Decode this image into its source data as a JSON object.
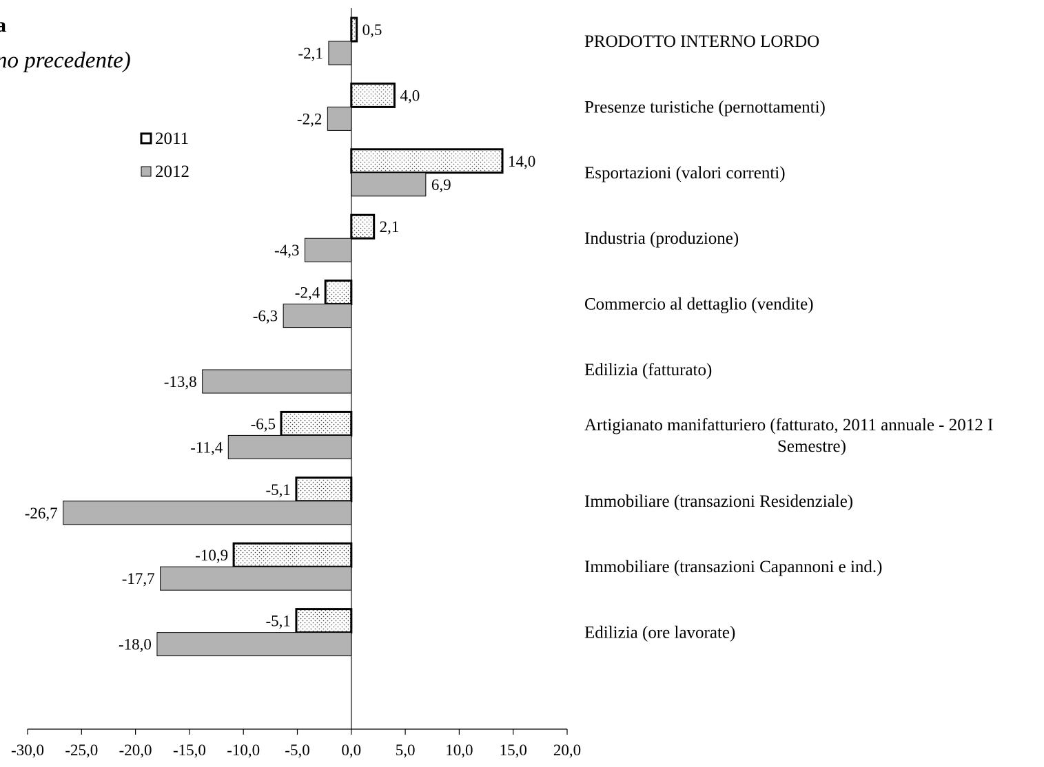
{
  "title_fragment": "a",
  "subtitle_fragment": "no precedente)",
  "chart_data": {
    "type": "bar",
    "orientation": "horizontal",
    "categories": [
      "PRODOTTO INTERNO LORDO",
      "Presenze turistiche (pernottamenti)",
      "Esportazioni (valori correnti)",
      "Industria (produzione)",
      "Commercio al dettaglio (vendite)",
      "Edilizia (fatturato)",
      "Artigianato manifatturiero (fatturato, 2011 annuale - 2012 I Semestre)",
      "Immobiliare (transazioni Residenziale)",
      "Immobiliare (transazioni Capannoni e ind.)",
      "Edilizia (ore lavorate)"
    ],
    "category_lines": [
      [
        "PRODOTTO INTERNO LORDO"
      ],
      [
        "Presenze turistiche (pernottamenti)"
      ],
      [
        "Esportazioni (valori correnti)"
      ],
      [
        "Industria (produzione)"
      ],
      [
        "Commercio al dettaglio (vendite)"
      ],
      [
        "Edilizia (fatturato)"
      ],
      [
        "Artigianato manifatturiero (fatturato, 2011 annuale - 2012 I",
        "Semestre)"
      ],
      [
        "Immobiliare (transazioni Residenziale)"
      ],
      [
        "Immobiliare (transazioni Capannoni e ind.)"
      ],
      [
        "Edilizia (ore lavorate)"
      ]
    ],
    "series": [
      {
        "name": "2011",
        "values": [
          0.5,
          4.0,
          14.0,
          2.1,
          -2.4,
          null,
          -6.5,
          -5.1,
          -10.9,
          -5.1
        ],
        "labels": [
          "0,5",
          "4,0",
          "14,0",
          "2,1",
          "-2,4",
          "",
          "-6,5",
          "-5,1",
          "-10,9",
          "-5,1"
        ],
        "fill": "dotted",
        "stroke": "#000000"
      },
      {
        "name": "2012",
        "values": [
          -2.1,
          -2.2,
          6.9,
          -4.3,
          -6.3,
          -13.8,
          -11.4,
          -26.7,
          -17.7,
          -18.0
        ],
        "labels": [
          "-2,1",
          "-2,2",
          "6,9",
          "-4,3",
          "-6,3",
          "-13,8",
          "-11,4",
          "-26,7",
          "-17,7",
          "-18,0"
        ],
        "fill": "#b3b3b3",
        "stroke": "#000000"
      }
    ],
    "xlim": [
      -30,
      20
    ],
    "xticks": [
      -30,
      -25,
      -20,
      -15,
      -10,
      -5,
      0,
      5,
      10,
      15,
      20
    ],
    "xtick_labels": [
      "-30,0",
      "-25,0",
      "-20,0",
      "-15,0",
      "-10,0",
      "-5,0",
      "0,0",
      "5,0",
      "10,0",
      "15,0",
      "20,0"
    ],
    "grid": false,
    "legend": {
      "position": "top-left",
      "entries": [
        "2011",
        "2012"
      ]
    }
  }
}
